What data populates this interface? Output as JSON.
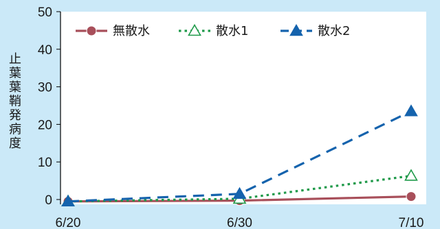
{
  "chart_data": {
    "type": "line",
    "categories": [
      "6/20",
      "6/30",
      "7/10"
    ],
    "xlabel": "",
    "ylabel": "止葉葉鞘発病度",
    "ylim": [
      0,
      50
    ],
    "yticks": [
      0,
      10,
      20,
      30,
      40,
      50
    ],
    "grid": false,
    "legend_position": "top",
    "series": [
      {
        "name": "無散水",
        "values": [
          -0.5,
          -0.3,
          0.8
        ],
        "color": "#a84f5a",
        "line_style": "solid",
        "marker": "filled-circle"
      },
      {
        "name": "散水1",
        "values": [
          -0.5,
          0.2,
          6.3
        ],
        "color": "#1f9a4a",
        "line_style": "dotted",
        "marker": "open-triangle"
      },
      {
        "name": "散水2",
        "values": [
          -0.5,
          1.5,
          23.5
        ],
        "color": "#1563ad",
        "line_style": "dashed",
        "marker": "filled-triangle"
      }
    ]
  }
}
